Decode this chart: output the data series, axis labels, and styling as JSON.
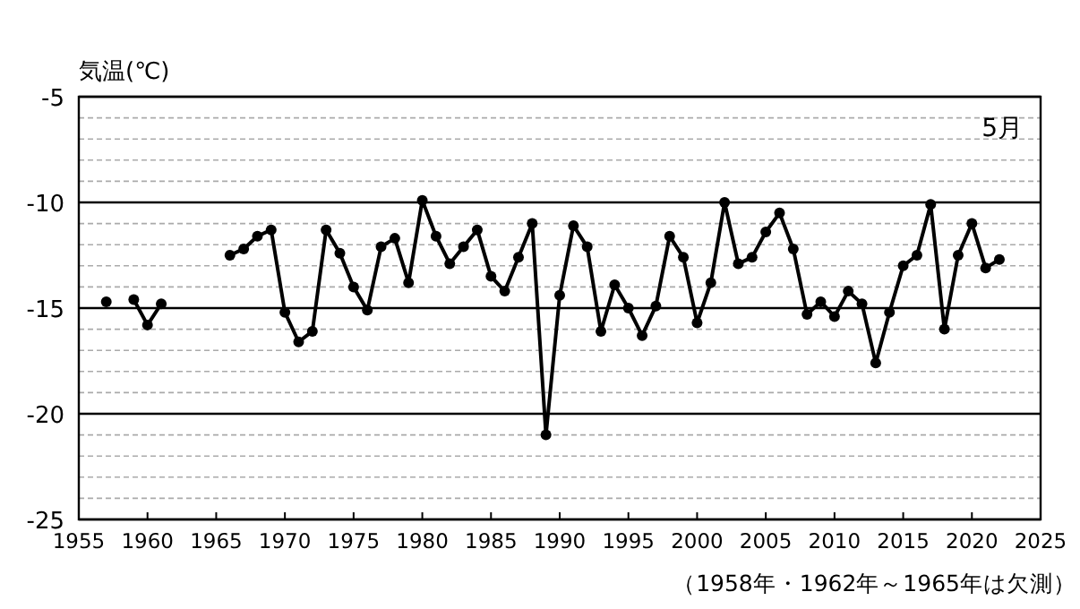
{
  "chart_data": {
    "type": "line",
    "ylabel": "気温(℃)",
    "annotations": [
      "5月",
      "（1958年・1962年～1965年は欠測）"
    ],
    "x": [
      1957,
      1958,
      1959,
      1960,
      1961,
      1962,
      1963,
      1964,
      1965,
      1966,
      1967,
      1968,
      1969,
      1970,
      1971,
      1972,
      1973,
      1974,
      1975,
      1976,
      1977,
      1978,
      1979,
      1980,
      1981,
      1982,
      1983,
      1984,
      1985,
      1986,
      1987,
      1988,
      1989,
      1990,
      1991,
      1992,
      1993,
      1994,
      1995,
      1996,
      1997,
      1998,
      1999,
      2000,
      2001,
      2002,
      2003,
      2004,
      2005,
      2006,
      2007,
      2008,
      2009,
      2010,
      2011,
      2012,
      2013,
      2014,
      2015,
      2016,
      2017,
      2018,
      2019,
      2020,
      2021,
      2022
    ],
    "series": [
      {
        "color": "#000000",
        "values": [
          -14.7,
          null,
          -14.6,
          -15.8,
          -14.8,
          null,
          null,
          null,
          null,
          -12.5,
          -12.2,
          -11.6,
          -11.3,
          -15.2,
          -16.6,
          -16.1,
          -11.3,
          -12.4,
          -14.0,
          -15.1,
          -12.1,
          -11.7,
          -13.8,
          -9.9,
          -11.6,
          -12.9,
          -12.1,
          -11.3,
          -13.5,
          -14.2,
          -12.6,
          -11.0,
          -21.0,
          -14.4,
          -11.1,
          -12.1,
          -16.1,
          -13.9,
          -15.0,
          -16.3,
          -14.9,
          -11.6,
          -12.6,
          -15.7,
          -13.8,
          -10.0,
          -12.9,
          -12.6,
          -11.4,
          -10.5,
          -12.2,
          -15.3,
          -14.7,
          -15.4,
          -14.2,
          -14.8,
          -17.6,
          -15.2,
          -13.0,
          -12.5,
          -10.1,
          -16.0,
          -12.5,
          -11.0,
          -13.1,
          -12.7
        ]
      }
    ],
    "xlim": [
      1955,
      2025
    ],
    "xticks": [
      1955,
      1960,
      1965,
      1970,
      1975,
      1980,
      1985,
      1990,
      1995,
      2000,
      2005,
      2010,
      2015,
      2020,
      2025
    ],
    "ylim": [
      -25,
      -5
    ],
    "yticks": [
      -5,
      {
        "value": -6,
        "label": null
      },
      {
        "value": -7,
        "label": null
      },
      {
        "value": -8,
        "label": null
      },
      {
        "value": -9,
        "label": null
      },
      -10,
      {
        "value": -11,
        "label": null
      },
      {
        "value": -12,
        "label": null
      },
      {
        "value": -13,
        "label": null
      },
      {
        "value": -14,
        "label": null
      },
      -15,
      {
        "value": -16,
        "label": null
      },
      {
        "value": -17,
        "label": null
      },
      {
        "value": -18,
        "label": null
      },
      {
        "value": -19,
        "label": null
      },
      -20,
      {
        "value": -21,
        "label": null
      },
      {
        "value": -22,
        "label": null
      },
      {
        "value": -23,
        "label": null
      },
      {
        "value": -24,
        "label": null
      },
      -25
    ],
    "grid": "y",
    "marker": "circle",
    "line_style": "solid"
  }
}
